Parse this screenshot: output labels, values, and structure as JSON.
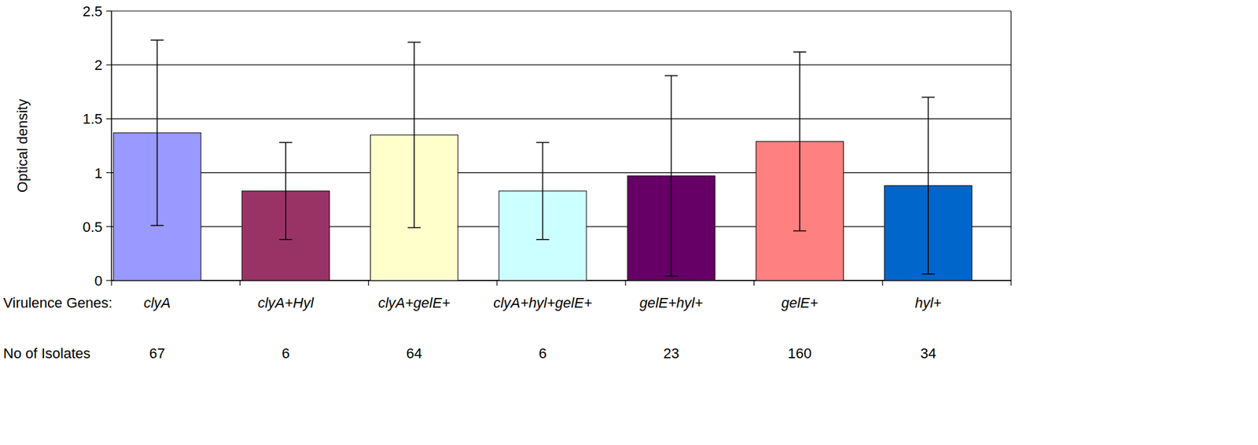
{
  "chart_data": {
    "type": "bar",
    "y_label": "Optical density",
    "x_label": "Virulence Genes:",
    "categories": [
      "clyA",
      "clyA+Hyl",
      "clyA+gelE+",
      "clyA+hyl+gelE+",
      "gelE+hyl+",
      "gelE+",
      "hyl+"
    ],
    "values": [
      1.37,
      0.83,
      1.35,
      0.83,
      0.97,
      1.29,
      0.88
    ],
    "errors": [
      0.86,
      0.45,
      0.86,
      0.45,
      0.93,
      0.83,
      0.82
    ],
    "colors": [
      "#9999ff",
      "#993366",
      "#ffffcc",
      "#ccffff",
      "#660066",
      "#ff8080",
      "#0066cc"
    ],
    "isolates_label": "No of Isolates",
    "isolates": [
      67,
      6,
      64,
      6,
      23,
      160,
      34
    ],
    "ylim": [
      0,
      2.5
    ],
    "yticks": [
      0,
      0.5,
      1,
      1.5,
      2,
      2.5
    ],
    "grid": true
  }
}
